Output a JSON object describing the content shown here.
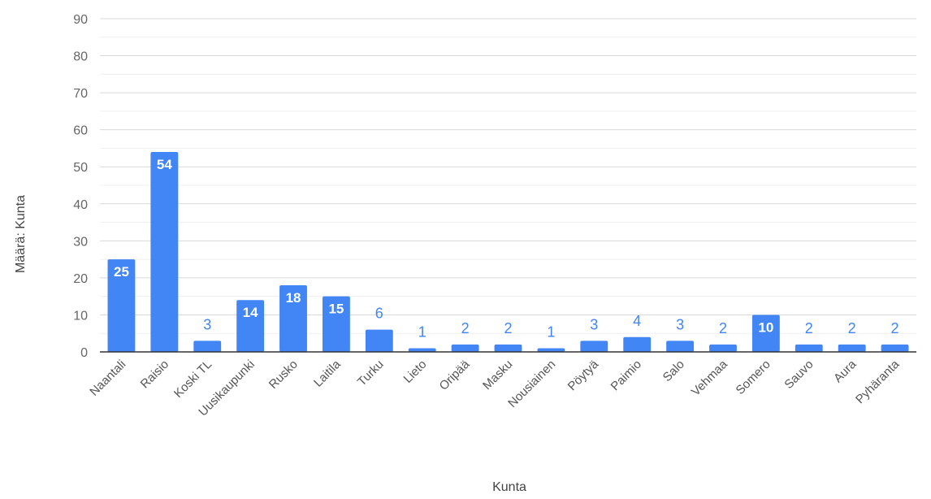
{
  "chart_data": {
    "type": "bar",
    "xlabel": "Kunta",
    "ylabel": "Määrä: Kunta",
    "ylim": [
      0,
      90
    ],
    "yticks": [
      0,
      10,
      20,
      30,
      40,
      50,
      60,
      70,
      80,
      90
    ],
    "minor_gridlines": true,
    "legend": "none",
    "bar_color": "#4285f4",
    "categories": [
      "Naantali",
      "Raisio",
      "Koski TL",
      "Uusikaupunki",
      "Rusko",
      "Laitila",
      "Turku",
      "Lieto",
      "Oripää",
      "Masku",
      "Nousiainen",
      "Pöytyä",
      "Paimio",
      "Salo",
      "Vehmaa",
      "Somero",
      "Sauvo",
      "Aura",
      "Pyhäranta"
    ],
    "values": [
      25,
      54,
      3,
      14,
      18,
      15,
      6,
      1,
      2,
      2,
      1,
      3,
      4,
      3,
      2,
      10,
      2,
      2,
      2
    ]
  }
}
